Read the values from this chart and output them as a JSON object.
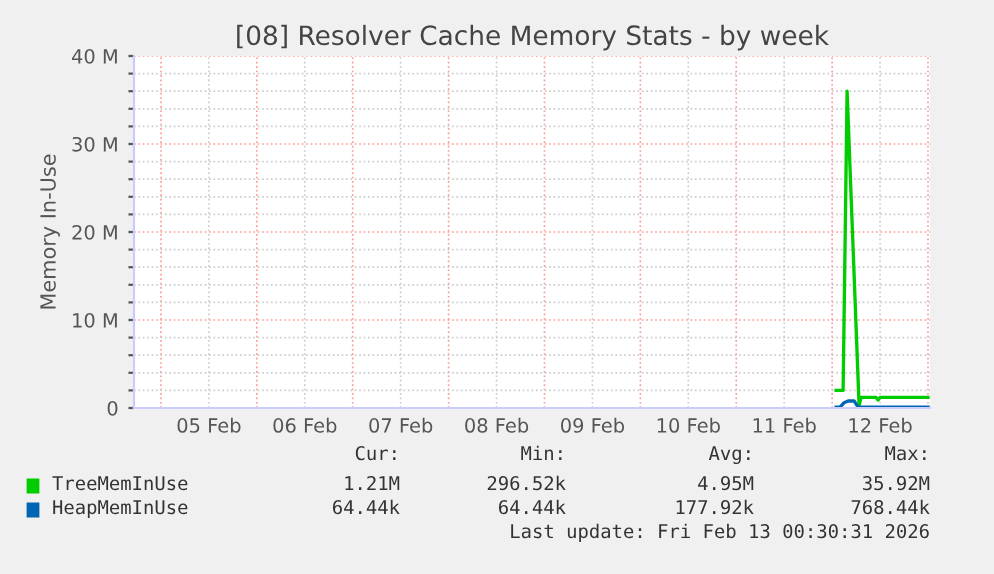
{
  "chart_data": {
    "type": "line",
    "title": "[08] Resolver Cache Memory Stats - by week",
    "ylabel": "Memory In-Use",
    "xlim": [
      "2026-02-04T17:15",
      "2026-02-13T00:30"
    ],
    "xticks": [
      {
        "value": "2026-02-05T00:00",
        "label": null
      },
      {
        "value": "2026-02-05T12:00",
        "label": "05 Feb"
      },
      {
        "value": "2026-02-06T00:00",
        "label": null
      },
      {
        "value": "2026-02-06T12:00",
        "label": "06 Feb"
      },
      {
        "value": "2026-02-07T00:00",
        "label": null
      },
      {
        "value": "2026-02-07T12:00",
        "label": "07 Feb"
      },
      {
        "value": "2026-02-08T00:00",
        "label": null
      },
      {
        "value": "2026-02-08T12:00",
        "label": "08 Feb"
      },
      {
        "value": "2026-02-09T00:00",
        "label": null
      },
      {
        "value": "2026-02-09T12:00",
        "label": "09 Feb"
      },
      {
        "value": "2026-02-10T00:00",
        "label": null
      },
      {
        "value": "2026-02-10T12:00",
        "label": "10 Feb"
      },
      {
        "value": "2026-02-11T00:00",
        "label": null
      },
      {
        "value": "2026-02-11T12:00",
        "label": "11 Feb"
      },
      {
        "value": "2026-02-12T00:00",
        "label": null
      },
      {
        "value": "2026-02-12T12:00",
        "label": "12 Feb"
      },
      {
        "value": "2026-02-13T00:00",
        "label": null
      }
    ],
    "ylim": [
      0,
      40
    ],
    "yticks": [
      {
        "value": 0,
        "label": "0"
      },
      {
        "value": 2,
        "label": null
      },
      {
        "value": 4,
        "label": null
      },
      {
        "value": 6,
        "label": null
      },
      {
        "value": 8,
        "label": null
      },
      {
        "value": 10,
        "label": "10 M"
      },
      {
        "value": 12,
        "label": null
      },
      {
        "value": 14,
        "label": null
      },
      {
        "value": 16,
        "label": null
      },
      {
        "value": 18,
        "label": null
      },
      {
        "value": 20,
        "label": "20 M"
      },
      {
        "value": 22,
        "label": null
      },
      {
        "value": 24,
        "label": null
      },
      {
        "value": 26,
        "label": null
      },
      {
        "value": 28,
        "label": null
      },
      {
        "value": 30,
        "label": "30 M"
      },
      {
        "value": 32,
        "label": null
      },
      {
        "value": 34,
        "label": null
      },
      {
        "value": 36,
        "label": null
      },
      {
        "value": 38,
        "label": null
      },
      {
        "value": 40,
        "label": "40 M"
      }
    ],
    "grid": true,
    "legend": "bottom",
    "series": [
      {
        "name": "TreeMemInUse",
        "color": "#00cc00",
        "x": [
          "2026-02-12T01:00",
          "2026-02-12T02:45",
          "2026-02-12T03:45",
          "2026-02-12T06:45",
          "2026-02-12T07:15",
          "2026-02-12T11:00",
          "2026-02-12T11:30",
          "2026-02-12T12:00",
          "2026-02-13T00:00"
        ],
        "values": [
          2.0,
          2.0,
          36,
          0.3,
          1.2,
          1.2,
          0.9,
          1.2,
          1.2
        ]
      },
      {
        "name": "HeapMemInUse",
        "color": "#0066b3",
        "x": [
          "2026-02-12T01:00",
          "2026-02-12T02:00",
          "2026-02-12T03:00",
          "2026-02-12T04:00",
          "2026-02-12T05:30",
          "2026-02-12T06:30",
          "2026-02-13T00:00"
        ],
        "values": [
          0.1,
          0.1,
          0.6,
          0.8,
          0.8,
          0.1,
          0.1
        ]
      }
    ],
    "annotations": [
      "Cur:",
      "Min:",
      "Avg:",
      "Max:",
      "1.21M",
      "296.52k",
      "4.95M",
      "35.92M",
      "64.44k",
      "64.44k",
      "177.92k",
      "768.44k",
      "Last update: Fri Feb 13 00:30:31 2026"
    ]
  }
}
